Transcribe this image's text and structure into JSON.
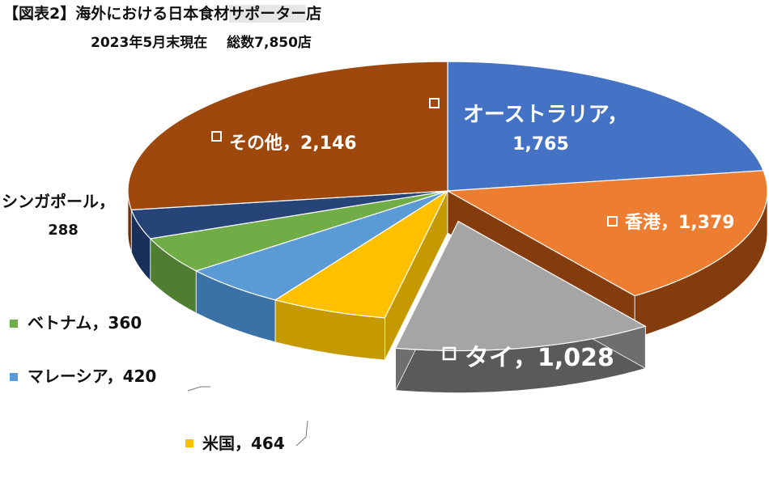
{
  "header": {
    "title_prefix": "【図表2】海外における日本食材",
    "title_highlight": "サポーター",
    "title_suffix": "店",
    "date": "2023年5月末現在",
    "total": "総数7,850店"
  },
  "chart_data": {
    "type": "pie",
    "title": "【図表2】海外における日本食材サポーター店",
    "subtitle": "2023年5月末現在　総数7,850店",
    "categories": [
      "オーストラリア",
      "香港",
      "タイ",
      "米国",
      "マレーシア",
      "ベトナム",
      "シンガポール",
      "その他"
    ],
    "values": [
      1765,
      1379,
      1028,
      464,
      420,
      360,
      288,
      2146
    ],
    "labels": [
      "オーストラリア，1,765",
      "香港，1,379",
      "タイ，1,028",
      "米国，464",
      "マレーシア，420",
      "ベトナム，360",
      "シンガポール，288",
      "その他，2,146"
    ],
    "colors": [
      "#4472c4",
      "#ed7d31",
      "#a5a5a5",
      "#ffc000",
      "#5b9bd5",
      "#70ad47",
      "#264478",
      "#9e480e"
    ],
    "side_colors": [
      "#2f528f",
      "#843c0c",
      "#5a5a5a",
      "#c49a00",
      "#3a72a8",
      "#4f7d32",
      "#19305a",
      "#6b300a"
    ],
    "exploded": "タイ",
    "legend": "none"
  }
}
